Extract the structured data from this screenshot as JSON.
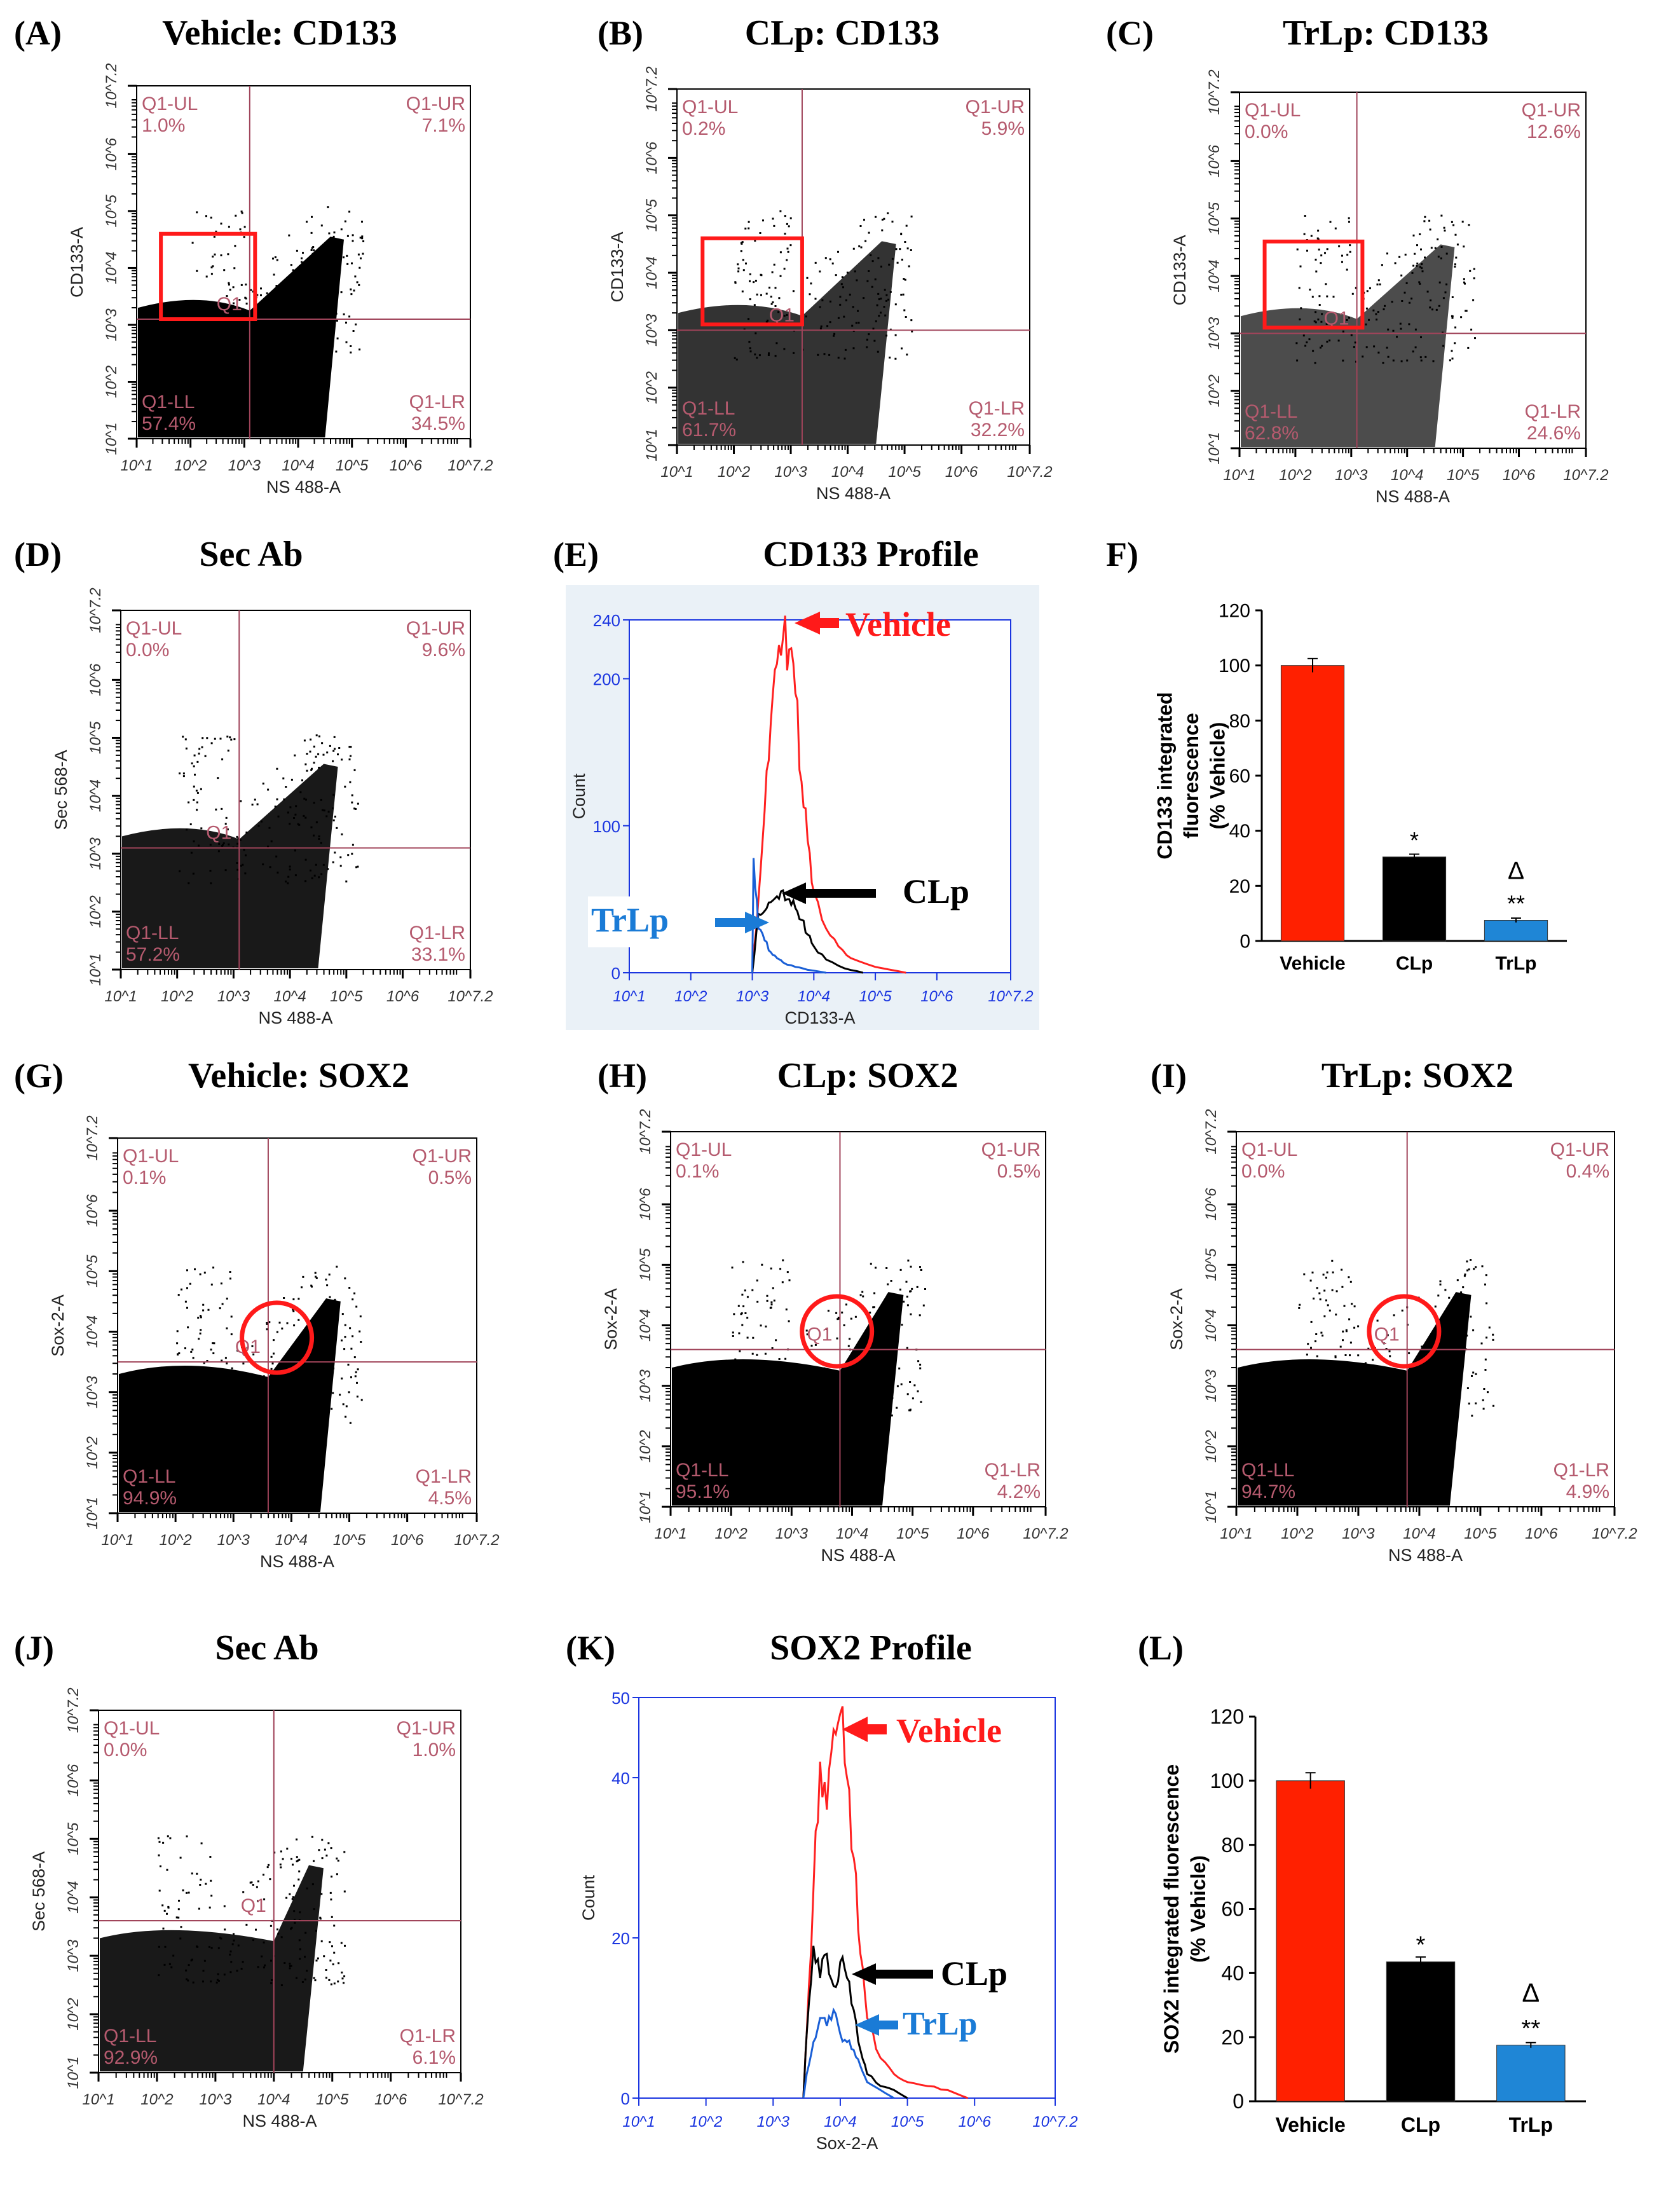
{
  "figure_labels": {
    "scatter_axis_x_tick_labels": [
      "10^1",
      "10^2",
      "10^3",
      "10^4",
      "10^5",
      "10^6",
      "10^7.2"
    ],
    "scatter_axis_y_tick_labels": [
      "10^1",
      "10^2",
      "10^3",
      "10^4",
      "10^5",
      "10^6",
      "10^7.2"
    ]
  },
  "chart_data": [
    {
      "panel": "A",
      "title": "Vehicle: CD133",
      "type": "scatter",
      "xlabel": "NS 488-A",
      "ylabel": "CD133-A",
      "quadrants": {
        "ul": {
          "name": "Q1-UL",
          "pct": "1.0%"
        },
        "ur": {
          "name": "Q1-UR",
          "pct": "7.1%"
        },
        "ll": {
          "name": "Q1-LL",
          "pct": "57.4%"
        },
        "lr": {
          "name": "Q1-LR",
          "pct": "34.5%"
        }
      },
      "gate_label": "Q1",
      "gate": "rectangle",
      "x_gate_log": 3.1,
      "y_gate_log": 3.1,
      "density": "high"
    },
    {
      "panel": "B",
      "title": "CLp: CD133",
      "type": "scatter",
      "xlabel": "NS 488-A",
      "ylabel": "CD133-A",
      "quadrants": {
        "ul": {
          "name": "Q1-UL",
          "pct": "0.2%"
        },
        "ur": {
          "name": "Q1-UR",
          "pct": "5.9%"
        },
        "ll": {
          "name": "Q1-LL",
          "pct": "61.7%"
        },
        "lr": {
          "name": "Q1-LR",
          "pct": "32.2%"
        }
      },
      "gate_label": "Q1",
      "gate": "rectangle",
      "x_gate_log": 3.2,
      "y_gate_log": 3.0,
      "density": "medium"
    },
    {
      "panel": "C",
      "title": "TrLp: CD133",
      "type": "scatter",
      "xlabel": "NS 488-A",
      "ylabel": "CD133-A",
      "quadrants": {
        "ul": {
          "name": "Q1-UL",
          "pct": "0.0%"
        },
        "ur": {
          "name": "Q1-UR",
          "pct": "12.6%"
        },
        "ll": {
          "name": "Q1-LL",
          "pct": "62.8%"
        },
        "lr": {
          "name": "Q1-LR",
          "pct": "24.6%"
        }
      },
      "gate_label": "Q1",
      "gate": "rectangle",
      "x_gate_log": 3.1,
      "y_gate_log": 3.0,
      "density": "low"
    },
    {
      "panel": "D",
      "title": "Sec Ab",
      "type": "scatter",
      "xlabel": "NS 488-A",
      "ylabel": "Sec 568-A",
      "quadrants": {
        "ul": {
          "name": "Q1-UL",
          "pct": "0.0%"
        },
        "ur": {
          "name": "Q1-UR",
          "pct": "9.6%"
        },
        "ll": {
          "name": "Q1-LL",
          "pct": "57.2%"
        },
        "lr": {
          "name": "Q1-LR",
          "pct": "33.1%"
        }
      },
      "gate_label": "Q1",
      "gate": "none",
      "x_gate_log": 3.1,
      "y_gate_log": 3.1,
      "density": "none"
    },
    {
      "panel": "E",
      "title": "CD133 Profile",
      "type": "line",
      "xlabel": "CD133-A",
      "ylabel": "Count",
      "ylim": [
        0,
        240
      ],
      "y_ticks": [
        "0",
        "100",
        "200",
        "240"
      ],
      "series": [
        {
          "name": "Vehicle",
          "color": "#ff2020",
          "x": [
            3.0,
            3.1,
            3.2,
            3.3,
            3.4,
            3.5,
            3.6,
            3.7,
            3.8,
            3.9,
            4.0,
            4.2,
            4.4,
            4.6,
            5.0,
            5.5
          ],
          "values": [
            0,
            50,
            110,
            170,
            210,
            228,
            220,
            190,
            130,
            90,
            55,
            30,
            18,
            10,
            4,
            0
          ]
        },
        {
          "name": "CLp",
          "color": "#000000",
          "x": [
            3.0,
            3.1,
            3.2,
            3.3,
            3.4,
            3.5,
            3.6,
            3.7,
            3.8,
            3.9,
            4.0,
            4.2,
            4.5,
            4.8
          ],
          "values": [
            0,
            40,
            42,
            48,
            52,
            56,
            50,
            44,
            36,
            26,
            18,
            9,
            3,
            0
          ]
        },
        {
          "name": "TrLp",
          "color": "#1a5fd6",
          "x": [
            3.0,
            3.02,
            3.1,
            3.2,
            3.3,
            3.4,
            3.5,
            3.7,
            3.9,
            4.2
          ],
          "values": [
            0,
            78,
            30,
            22,
            14,
            10,
            7,
            4,
            2,
            0
          ]
        }
      ],
      "annotations": [
        {
          "text": "Vehicle",
          "color": "#ff1a1a"
        },
        {
          "text": "CLp",
          "color": "#000000"
        },
        {
          "text": "TrLp",
          "color": "#1a7bd6"
        }
      ]
    },
    {
      "panel": "F",
      "type": "bar",
      "ylabel_lines": [
        "CD133 integrated",
        "fluorescence",
        "(% Vehicle)"
      ],
      "ylim": [
        0,
        120
      ],
      "y_ticks": [
        0,
        20,
        40,
        60,
        80,
        100,
        120
      ],
      "categories": [
        "Vehicle",
        "CLp",
        "TrLp"
      ],
      "values": [
        100,
        30.5,
        7.5
      ],
      "errors": [
        2.5,
        1,
        0.8
      ],
      "colors": [
        "#ff2000",
        "#000000",
        "#1f86d6"
      ],
      "significance": [
        "",
        "*",
        "**"
      ],
      "delta": "Δ"
    },
    {
      "panel": "G",
      "title": "Vehicle: SOX2",
      "type": "scatter",
      "xlabel": "NS 488-A",
      "ylabel": "Sox-2-A",
      "quadrants": {
        "ul": {
          "name": "Q1-UL",
          "pct": "0.1%"
        },
        "ur": {
          "name": "Q1-UR",
          "pct": "0.5%"
        },
        "ll": {
          "name": "Q1-LL",
          "pct": "94.9%"
        },
        "lr": {
          "name": "Q1-LR",
          "pct": "4.5%"
        }
      },
      "gate_label": "Q1",
      "gate": "circle",
      "x_gate_log": 3.6,
      "y_gate_log": 3.5,
      "density": "high"
    },
    {
      "panel": "H",
      "title": "CLp: SOX2",
      "type": "scatter",
      "xlabel": "NS 488-A",
      "ylabel": "Sox-2-A",
      "quadrants": {
        "ul": {
          "name": "Q1-UL",
          "pct": "0.1%"
        },
        "ur": {
          "name": "Q1-UR",
          "pct": "0.5%"
        },
        "ll": {
          "name": "Q1-LL",
          "pct": "95.1%"
        },
        "lr": {
          "name": "Q1-LR",
          "pct": "4.2%"
        }
      },
      "gate_label": "Q1",
      "gate": "circle",
      "x_gate_log": 3.8,
      "y_gate_log": 3.6,
      "density": "high"
    },
    {
      "panel": "I",
      "title": "TrLp: SOX2",
      "type": "scatter",
      "xlabel": "NS 488-A",
      "ylabel": "Sox-2-A",
      "quadrants": {
        "ul": {
          "name": "Q1-UL",
          "pct": "0.0%"
        },
        "ur": {
          "name": "Q1-UR",
          "pct": "0.4%"
        },
        "ll": {
          "name": "Q1-LL",
          "pct": "94.7%"
        },
        "lr": {
          "name": "Q1-LR",
          "pct": "4.9%"
        }
      },
      "gate_label": "Q1",
      "gate": "circle",
      "x_gate_log": 3.8,
      "y_gate_log": 3.6,
      "density": "high"
    },
    {
      "panel": "J",
      "title": "Sec Ab",
      "type": "scatter",
      "xlabel": "NS 488-A",
      "ylabel": "Sec 568-A",
      "quadrants": {
        "ul": {
          "name": "Q1-UL",
          "pct": "0.0%"
        },
        "ur": {
          "name": "Q1-UR",
          "pct": "1.0%"
        },
        "ll": {
          "name": "Q1-LL",
          "pct": "92.9%"
        },
        "lr": {
          "name": "Q1-LR",
          "pct": "6.1%"
        }
      },
      "gate_label": "Q1",
      "gate": "none",
      "x_gate_log": 4.0,
      "y_gate_log": 3.6,
      "density": "none"
    },
    {
      "panel": "K",
      "title": "SOX2 Profile",
      "type": "line",
      "xlabel": "Sox-2-A",
      "ylabel": "Count",
      "ylim": [
        0,
        50
      ],
      "y_ticks": [
        "0",
        "20",
        "40",
        "50"
      ],
      "series": [
        {
          "name": "Vehicle",
          "color": "#ff2020",
          "x": [
            3.45,
            3.5,
            3.6,
            3.7,
            3.8,
            3.9,
            4.0,
            4.1,
            4.2,
            4.3,
            4.4,
            4.6,
            4.8,
            5.0,
            5.3,
            5.6,
            5.9
          ],
          "values": [
            0,
            8,
            26,
            42,
            36,
            46,
            48,
            40,
            30,
            18,
            10,
            5,
            3,
            2,
            1.5,
            1,
            0
          ]
        },
        {
          "name": "CLp",
          "color": "#000000",
          "x": [
            3.45,
            3.5,
            3.6,
            3.7,
            3.8,
            3.9,
            4.0,
            4.1,
            4.2,
            4.3,
            4.4,
            4.6,
            4.8,
            5.0
          ],
          "values": [
            0,
            8,
            19,
            15,
            18,
            14,
            17,
            15,
            11,
            6,
            3,
            1.5,
            1,
            0
          ]
        },
        {
          "name": "TrLp",
          "color": "#1a5fd6",
          "x": [
            3.45,
            3.5,
            3.6,
            3.7,
            3.8,
            3.9,
            4.0,
            4.1,
            4.2,
            4.3,
            4.4,
            4.6,
            4.8
          ],
          "values": [
            0,
            3,
            7,
            10,
            9,
            11,
            8,
            7,
            6,
            4,
            2,
            1,
            0
          ]
        }
      ],
      "annotations": [
        {
          "text": "Vehicle",
          "color": "#ff1a1a"
        },
        {
          "text": "CLp",
          "color": "#000000"
        },
        {
          "text": "TrLp",
          "color": "#1a7bd6"
        }
      ]
    },
    {
      "panel": "L",
      "type": "bar",
      "ylabel_lines": [
        "SOX2 integrated fluorescence",
        "(% Vehicle)"
      ],
      "ylim": [
        0,
        120
      ],
      "y_ticks": [
        0,
        20,
        40,
        60,
        80,
        100,
        120
      ],
      "categories": [
        "Vehicle",
        "CLp",
        "TrLp"
      ],
      "values": [
        100,
        43.5,
        17.5
      ],
      "errors": [
        2.5,
        1.5,
        0.8
      ],
      "colors": [
        "#ff2000",
        "#000000",
        "#1f86d6"
      ],
      "significance": [
        "",
        "*",
        "**"
      ],
      "delta": "Δ"
    }
  ]
}
